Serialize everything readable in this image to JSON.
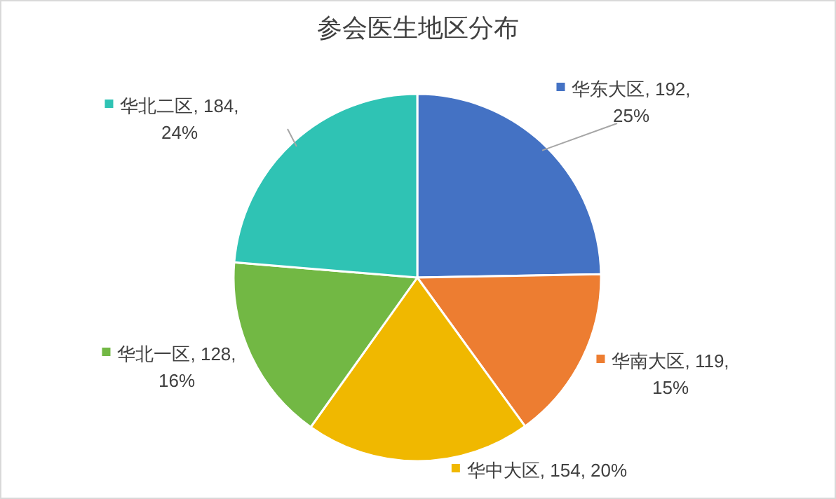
{
  "chart_data": {
    "type": "pie",
    "title": "参会医生地区分布",
    "categories": [
      "华东大区",
      "华南大区",
      "华中大区",
      "华北一区",
      "华北二区"
    ],
    "values": [
      192,
      119,
      154,
      128,
      184
    ],
    "value_labels": [
      "192, 25%",
      "119, 15%",
      "154, 20%",
      "128, 16%",
      "184, 24%"
    ],
    "colors": [
      "#4472c4",
      "#ed7d31",
      "#f0b800",
      "#72b844",
      "#2fc3b4"
    ],
    "legend": "right"
  }
}
